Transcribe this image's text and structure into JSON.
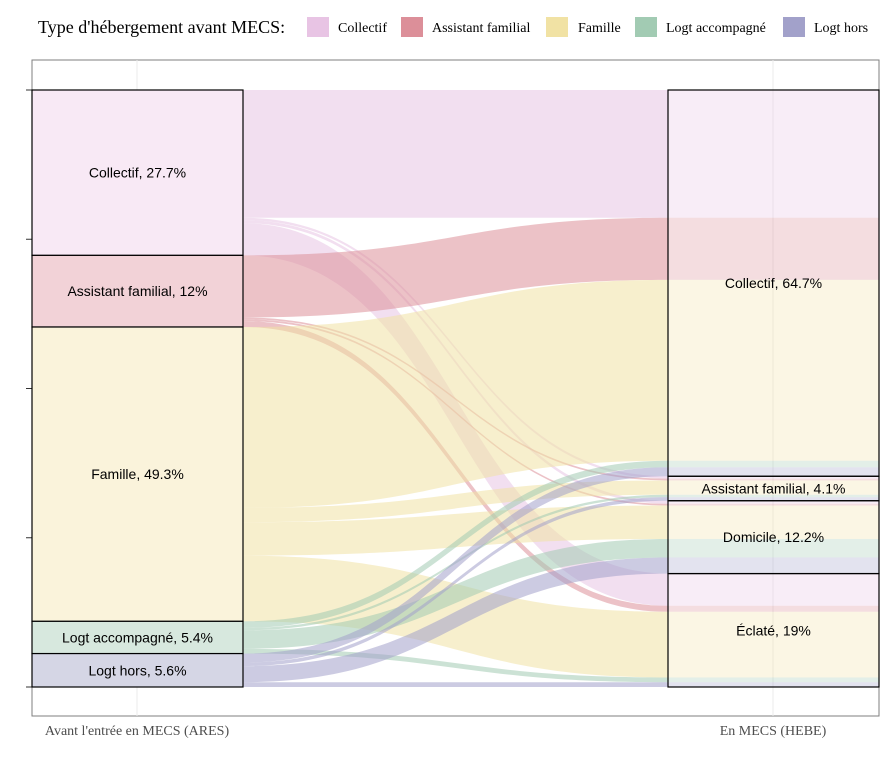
{
  "chart_data": {
    "type": "alluvial",
    "legend": {
      "title": "Type d'hébergement avant MECS:",
      "entries": [
        {
          "label": "Collectif",
          "color": "#e8c4e4"
        },
        {
          "label": "Assistant familial",
          "color": "#dc8f99"
        },
        {
          "label": "Famille",
          "color": "#f1e2a4"
        },
        {
          "label": "Logt accompagné",
          "color": "#a2cbb3"
        },
        {
          "label": "Logt hors",
          "color": "#a2a1ca"
        }
      ]
    },
    "axes": [
      {
        "label": "Avant l'entrée en MECS (ARES)"
      },
      {
        "label": "En MECS (HEBE)"
      }
    ],
    "left_strata": [
      {
        "name": "Collectif",
        "pct": 27.7,
        "label": "Collectif, 27.7%",
        "fill": "#f8e9f5"
      },
      {
        "name": "Assistant familial",
        "pct": 12.0,
        "label": "Assistant familial, 12%",
        "fill": "#f2d2d7"
      },
      {
        "name": "Famille",
        "pct": 49.3,
        "label": "Famille, 49.3%",
        "fill": "#faf3db"
      },
      {
        "name": "Logt accompagné",
        "pct": 5.4,
        "label": "Logt accompagné, 5.4%",
        "fill": "#d7e8de"
      },
      {
        "name": "Logt hors",
        "pct": 5.6,
        "label": "Logt hors, 5.6%",
        "fill": "#d5d6e5"
      }
    ],
    "right_strata": [
      {
        "name": "Collectif",
        "pct": 64.7,
        "label": "Collectif, 64.7%"
      },
      {
        "name": "Assistant familial",
        "pct": 4.1,
        "label": "Assistant familial, 4.1%"
      },
      {
        "name": "Domicile",
        "pct": 12.2,
        "label": "Domicile, 12.2%"
      },
      {
        "name": "Éclaté",
        "pct": 19.0,
        "label": "Éclaté, 19%"
      }
    ],
    "flows": [
      {
        "from": "Collectif",
        "to": "Collectif",
        "value": 21.4
      },
      {
        "from": "Collectif",
        "to": "Assistant familial",
        "value": 0.4
      },
      {
        "from": "Collectif",
        "to": "Domicile",
        "value": 0.5
      },
      {
        "from": "Collectif",
        "to": "Éclaté",
        "value": 5.4
      },
      {
        "from": "Assistant familial",
        "to": "Collectif",
        "value": 10.4
      },
      {
        "from": "Assistant familial",
        "to": "Assistant familial",
        "value": 0.3
      },
      {
        "from": "Assistant familial",
        "to": "Domicile",
        "value": 0.3
      },
      {
        "from": "Assistant familial",
        "to": "Éclaté",
        "value": 1.0
      },
      {
        "from": "Famille",
        "to": "Collectif",
        "value": 30.3
      },
      {
        "from": "Famille",
        "to": "Assistant familial",
        "value": 2.4
      },
      {
        "from": "Famille",
        "to": "Domicile",
        "value": 5.6
      },
      {
        "from": "Famille",
        "to": "Éclaté",
        "value": 11.0
      },
      {
        "from": "Logt accompagné",
        "to": "Collectif",
        "value": 1.1
      },
      {
        "from": "Logt accompagné",
        "to": "Assistant familial",
        "value": 0.4
      },
      {
        "from": "Logt accompagné",
        "to": "Domicile",
        "value": 3.1
      },
      {
        "from": "Logt accompagné",
        "to": "Éclaté",
        "value": 0.8
      },
      {
        "from": "Logt hors",
        "to": "Collectif",
        "value": 1.5
      },
      {
        "from": "Logt hors",
        "to": "Assistant familial",
        "value": 0.6
      },
      {
        "from": "Logt hors",
        "to": "Domicile",
        "value": 2.7
      },
      {
        "from": "Logt hors",
        "to": "Éclaté",
        "value": 0.8
      }
    ],
    "grid": true
  }
}
